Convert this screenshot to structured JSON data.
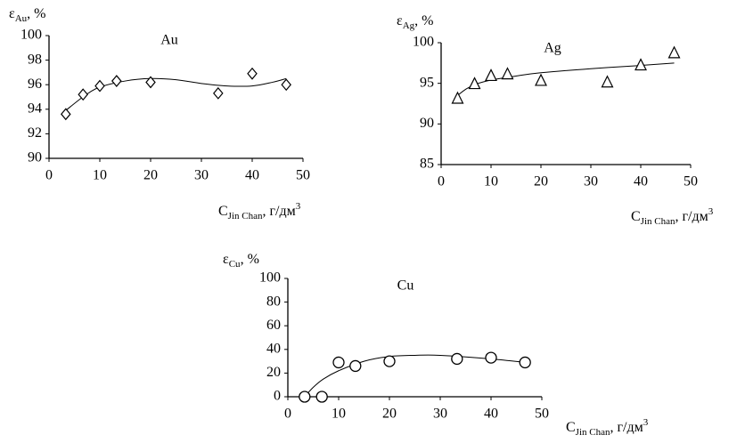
{
  "chart_data": [
    {
      "type": "scatter",
      "title": "Au",
      "ylabel": [
        "ε",
        "Au",
        ", %"
      ],
      "xlabel": [
        "C",
        "Jin Chan",
        ", г/дм",
        "3"
      ],
      "xlim": [
        0,
        50
      ],
      "xticks": [
        0,
        10,
        20,
        30,
        40,
        50
      ],
      "ylim": [
        90,
        100
      ],
      "yticks": [
        90,
        92,
        94,
        96,
        98,
        100
      ],
      "series": [
        {
          "marker": "diamond",
          "x": [
            3.3,
            6.7,
            10,
            13.3,
            20,
            33.3,
            40,
            46.7
          ],
          "values": [
            93.6,
            95.2,
            95.9,
            96.3,
            96.2,
            95.3,
            96.9,
            96.0
          ]
        },
        {
          "marker": "line",
          "x": [
            3.3,
            7,
            10,
            15,
            20,
            25,
            30,
            35,
            40,
            44,
            46.7
          ],
          "values": [
            93.9,
            95.1,
            95.8,
            96.3,
            96.5,
            96.4,
            96.1,
            95.9,
            95.9,
            96.2,
            96.5
          ]
        }
      ]
    },
    {
      "type": "scatter",
      "title": "Ag",
      "ylabel": [
        "ε",
        "Ag",
        ", %"
      ],
      "xlabel": [
        "C",
        "Jin Chan",
        ", г/дм",
        "3"
      ],
      "xlim": [
        0,
        50
      ],
      "xticks": [
        0,
        10,
        20,
        30,
        40,
        50
      ],
      "ylim": [
        85,
        100
      ],
      "yticks": [
        85,
        90,
        95,
        100
      ],
      "series": [
        {
          "marker": "triangle",
          "x": [
            3.3,
            6.7,
            10,
            13.3,
            20,
            33.3,
            40,
            46.7
          ],
          "values": [
            93.1,
            94.9,
            95.9,
            96.1,
            95.3,
            95.1,
            97.2,
            98.7
          ]
        },
        {
          "marker": "line",
          "x": [
            3.3,
            5,
            7,
            10,
            15,
            20,
            30,
            40,
            46.7
          ],
          "values": [
            93.5,
            94.3,
            94.9,
            95.4,
            95.9,
            96.3,
            96.8,
            97.2,
            97.5
          ]
        }
      ]
    },
    {
      "type": "scatter",
      "title": "Cu",
      "ylabel": [
        "ε",
        "Cu",
        ", %"
      ],
      "xlabel": [
        "C",
        "Jin Chan",
        ", г/дм",
        "3"
      ],
      "xlim": [
        0,
        50
      ],
      "xticks": [
        0,
        10,
        20,
        30,
        40,
        50
      ],
      "ylim": [
        0,
        100
      ],
      "yticks": [
        0,
        20,
        40,
        60,
        80,
        100
      ],
      "series": [
        {
          "marker": "circle",
          "x": [
            3.3,
            6.7,
            10,
            13.3,
            20,
            33.3,
            40,
            46.7
          ],
          "values": [
            0,
            0,
            29,
            26,
            30,
            32,
            33,
            29
          ]
        },
        {
          "marker": "line",
          "x": [
            3.3,
            5,
            7,
            10,
            15,
            20,
            25,
            30,
            40,
            46.7
          ],
          "values": [
            0,
            8,
            15,
            22,
            30,
            34,
            35,
            35,
            32,
            29
          ]
        }
      ]
    }
  ]
}
